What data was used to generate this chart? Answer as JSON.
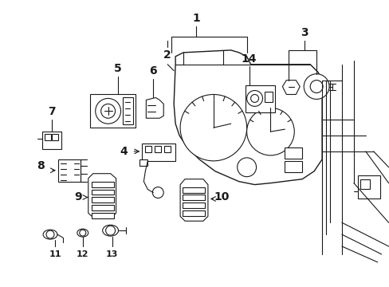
{
  "background_color": "#ffffff",
  "figure_width": 4.89,
  "figure_height": 3.6,
  "dpi": 100,
  "line_color": "#1a1a1a",
  "line_width": 0.8,
  "font_size": 8
}
